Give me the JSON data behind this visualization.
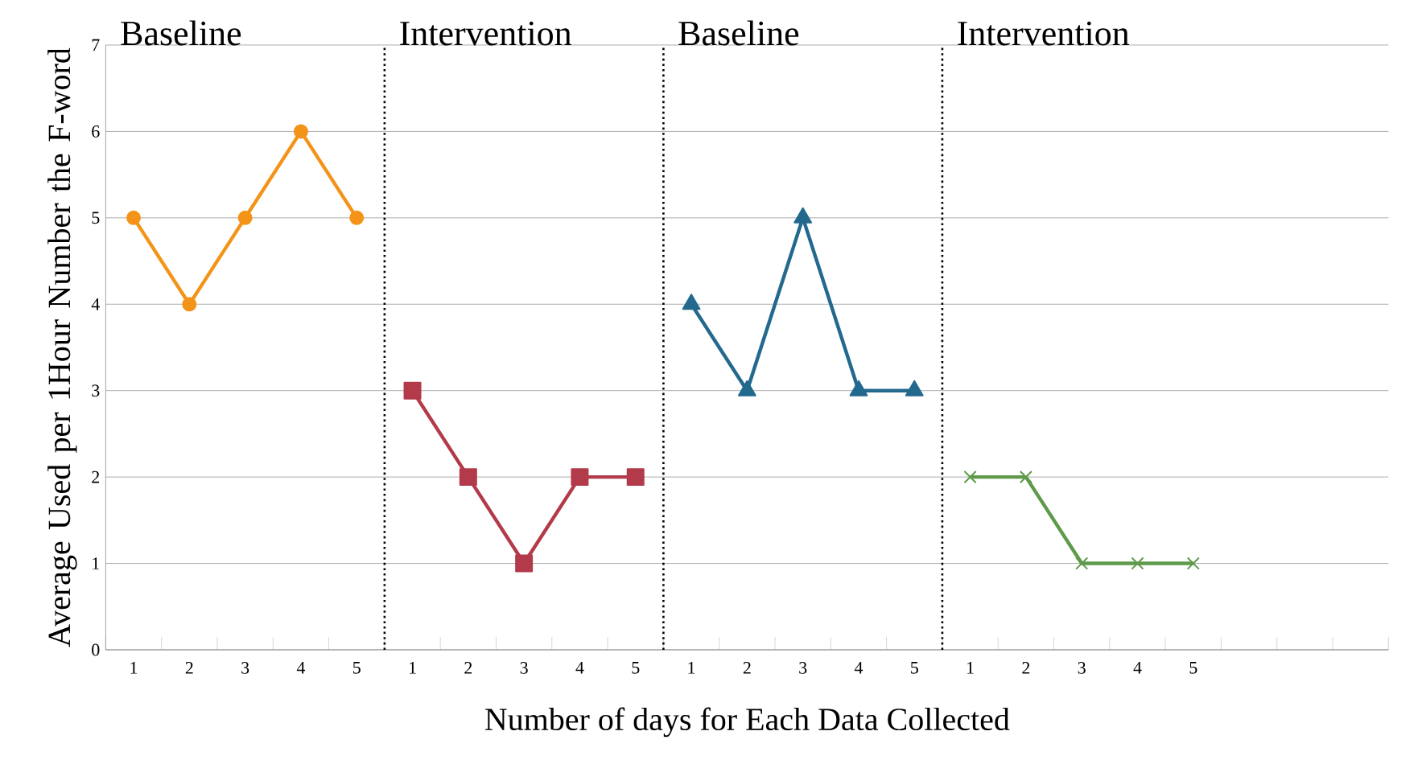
{
  "chart_data": {
    "type": "line",
    "xlabel": "Number of days for Each Data Collected",
    "ylabel": "Average Used per 1Hour Number the F-word",
    "categories": [
      "1",
      "2",
      "3",
      "4",
      "5",
      "1",
      "2",
      "3",
      "4",
      "5",
      "1",
      "2",
      "3",
      "4",
      "5",
      "1",
      "2",
      "3",
      "4",
      "5",
      null,
      null,
      null
    ],
    "series": [
      {
        "color": "#f39419",
        "marker": "circle",
        "values": [
          5,
          4,
          5,
          6,
          5,
          null,
          null,
          null,
          null,
          null,
          null,
          null,
          null,
          null,
          null,
          null,
          null,
          null,
          null,
          null,
          null,
          null,
          null
        ]
      },
      {
        "color": "#b33a4a",
        "marker": "square",
        "values": [
          null,
          null,
          null,
          null,
          null,
          3,
          2,
          1,
          2,
          2,
          null,
          null,
          null,
          null,
          null,
          null,
          null,
          null,
          null,
          null,
          null,
          null,
          null
        ]
      },
      {
        "color": "#22698d",
        "marker": "triangle",
        "values": [
          null,
          null,
          null,
          null,
          null,
          null,
          null,
          null,
          null,
          null,
          4,
          3,
          5,
          3,
          3,
          null,
          null,
          null,
          null,
          null,
          null,
          null,
          null
        ]
      },
      {
        "color": "#5f9a4a",
        "marker": "cross",
        "values": [
          null,
          null,
          null,
          null,
          null,
          null,
          null,
          null,
          null,
          null,
          null,
          null,
          null,
          null,
          null,
          2,
          2,
          1,
          1,
          1,
          null,
          null,
          null
        ]
      }
    ],
    "ylim": [
      0,
      7
    ],
    "yticks": [
      0,
      1,
      2,
      3,
      4,
      5,
      6,
      7
    ],
    "grid": "y",
    "line_style": "solid",
    "annotations": [
      "Baseline",
      "Intervention",
      "Baseline",
      "Intervention"
    ]
  }
}
